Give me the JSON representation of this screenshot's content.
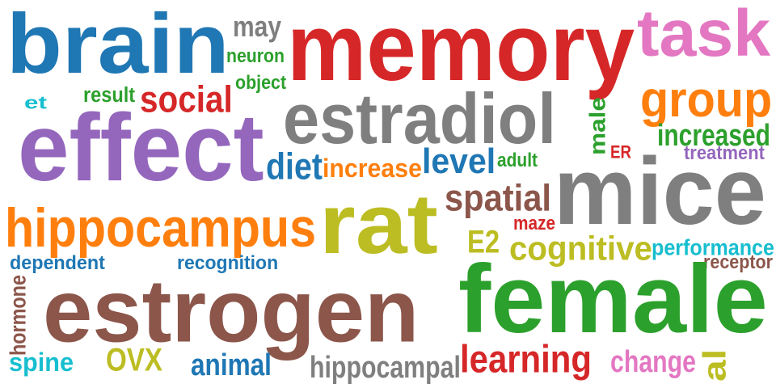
{
  "words": [
    {
      "text": "brain",
      "color": "#1f77b4"
    },
    {
      "text": "may",
      "color": "#7f7f7f"
    },
    {
      "text": "memory",
      "color": "#d62728"
    },
    {
      "text": "task",
      "color": "#e377c2"
    },
    {
      "text": "neuron",
      "color": "#2ca02c"
    },
    {
      "text": "object",
      "color": "#2ca02c"
    },
    {
      "text": "et",
      "color": "#17becf"
    },
    {
      "text": "result",
      "color": "#2ca02c"
    },
    {
      "text": "social",
      "color": "#d62728"
    },
    {
      "text": "estradiol",
      "color": "#7f7f7f"
    },
    {
      "text": "male",
      "color": "#2ca02c"
    },
    {
      "text": "group",
      "color": "#ff7f0e"
    },
    {
      "text": "effect",
      "color": "#9467bd"
    },
    {
      "text": "increased",
      "color": "#2ca02c"
    },
    {
      "text": "ER",
      "color": "#d62728"
    },
    {
      "text": "treatment",
      "color": "#9467bd"
    },
    {
      "text": "diet",
      "color": "#1f77b4"
    },
    {
      "text": "increase",
      "color": "#ff7f0e"
    },
    {
      "text": "level",
      "color": "#1f77b4"
    },
    {
      "text": "adult",
      "color": "#2ca02c"
    },
    {
      "text": "mice",
      "color": "#7f7f7f"
    },
    {
      "text": "spatial",
      "color": "#8c564b"
    },
    {
      "text": "maze",
      "color": "#d62728"
    },
    {
      "text": "hippocampus",
      "color": "#ff7f0e"
    },
    {
      "text": "rat",
      "color": "#bcbd22"
    },
    {
      "text": "E2",
      "color": "#bcbd22"
    },
    {
      "text": "cognitive",
      "color": "#bcbd22"
    },
    {
      "text": "performance",
      "color": "#17becf"
    },
    {
      "text": "receptor",
      "color": "#8c564b"
    },
    {
      "text": "dependent",
      "color": "#1f77b4"
    },
    {
      "text": "recognition",
      "color": "#1f77b4"
    },
    {
      "text": "hormone",
      "color": "#8c564b"
    },
    {
      "text": "estrogen",
      "color": "#8c564b"
    },
    {
      "text": "female",
      "color": "#2ca02c"
    },
    {
      "text": "spine",
      "color": "#17becf"
    },
    {
      "text": "OVX",
      "color": "#bcbd22"
    },
    {
      "text": "animal",
      "color": "#1f77b4"
    },
    {
      "text": "hippocampal",
      "color": "#7f7f7f"
    },
    {
      "text": "learning",
      "color": "#d62728"
    },
    {
      "text": "change",
      "color": "#e377c2"
    },
    {
      "text": "al",
      "color": "#bcbd22"
    }
  ]
}
